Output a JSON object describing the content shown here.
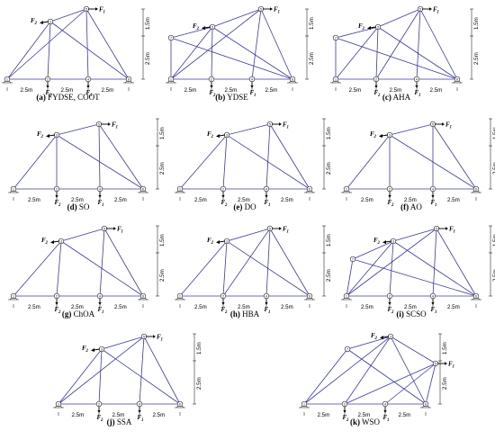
{
  "labels": {
    "horizontal_dim": "2.5m",
    "dim_top": "1.5m",
    "dim_bottom": "2.5m",
    "force1": "F",
    "force1_sub": "1",
    "force2": "F",
    "force2_sub": "2"
  },
  "panels": [
    {
      "letter": "(a)",
      "name": "FYDSE, COOT",
      "nodes": 6,
      "members": [
        [
          1,
          3
        ],
        [
          1,
          4
        ],
        [
          1,
          6
        ],
        [
          3,
          5
        ],
        [
          3,
          2
        ],
        [
          2,
          5
        ],
        [
          4,
          5
        ],
        [
          5,
          6
        ],
        [
          5,
          1
        ]
      ]
    },
    {
      "letter": "(b)",
      "name": "YDSE",
      "nodes": 6,
      "members": [
        [
          1,
          3
        ],
        [
          1,
          4
        ],
        [
          3,
          2
        ],
        [
          2,
          4
        ],
        [
          3,
          4
        ],
        [
          4,
          5
        ],
        [
          5,
          6
        ],
        [
          2,
          5
        ],
        [
          1,
          2
        ]
      ]
    },
    {
      "letter": "(c)",
      "name": "AHA",
      "nodes": 6,
      "members": [
        [
          1,
          3
        ],
        [
          3,
          2
        ],
        [
          2,
          4
        ],
        [
          1,
          4
        ],
        [
          4,
          5
        ],
        [
          5,
          6
        ],
        [
          2,
          5
        ],
        [
          1,
          2
        ],
        [
          3,
          4
        ]
      ]
    },
    {
      "letter": "(d)",
      "name": "SO",
      "nodes": 6,
      "members": [
        [
          1,
          3
        ],
        [
          1,
          5
        ],
        [
          3,
          4
        ],
        [
          3,
          6
        ],
        [
          4,
          5
        ],
        [
          5,
          6
        ],
        [
          4,
          6
        ],
        [
          1,
          4
        ]
      ]
    },
    {
      "letter": "(e)",
      "name": "DO",
      "nodes": 6,
      "members": [
        [
          1,
          3
        ],
        [
          3,
          2
        ],
        [
          3,
          5
        ],
        [
          2,
          5
        ],
        [
          1,
          4
        ],
        [
          4,
          5
        ],
        [
          5,
          6
        ],
        [
          3,
          6
        ],
        [
          4,
          3
        ]
      ]
    },
    {
      "letter": "(f)",
      "name": "AO",
      "nodes": 6,
      "members": [
        [
          1,
          3
        ],
        [
          3,
          2
        ],
        [
          3,
          4
        ],
        [
          3,
          6
        ],
        [
          2,
          5
        ],
        [
          5,
          6
        ],
        [
          4,
          6
        ],
        [
          2,
          4
        ]
      ]
    },
    {
      "letter": "(g)",
      "name": "ChOA",
      "nodes": 6,
      "members": [
        [
          1,
          3
        ],
        [
          1,
          4
        ],
        [
          3,
          4
        ],
        [
          3,
          6
        ],
        [
          2,
          5
        ],
        [
          4,
          5
        ],
        [
          5,
          6
        ],
        [
          2,
          4
        ]
      ]
    },
    {
      "letter": "(h)",
      "name": "HBA",
      "nodes": 6,
      "members": [
        [
          1,
          3
        ],
        [
          3,
          4
        ],
        [
          3,
          6
        ],
        [
          2,
          5
        ],
        [
          4,
          5
        ],
        [
          5,
          6
        ],
        [
          2,
          6
        ],
        [
          1,
          4
        ]
      ]
    },
    {
      "letter": "(i)",
      "name": "SCSO",
      "nodes": 6,
      "members": [
        [
          1,
          3
        ],
        [
          1,
          4
        ],
        [
          3,
          4
        ],
        [
          3,
          6
        ],
        [
          2,
          5
        ],
        [
          4,
          5
        ],
        [
          5,
          6
        ],
        [
          2,
          6
        ],
        [
          1,
          2
        ]
      ]
    },
    {
      "letter": "(j)",
      "name": "SSA",
      "nodes": 6,
      "members": [
        [
          1,
          3
        ],
        [
          1,
          4
        ],
        [
          3,
          4
        ],
        [
          3,
          6
        ],
        [
          2,
          5
        ],
        [
          4,
          5
        ],
        [
          5,
          6
        ],
        [
          2,
          6
        ]
      ]
    },
    {
      "letter": "(k)",
      "name": "WSO",
      "nodes": 6,
      "members": [
        [
          1,
          3
        ],
        [
          1,
          5
        ],
        [
          3,
          4
        ],
        [
          3,
          6
        ],
        [
          4,
          5
        ],
        [
          5,
          6
        ],
        [
          4,
          6
        ],
        [
          2,
          4
        ]
      ]
    }
  ]
}
